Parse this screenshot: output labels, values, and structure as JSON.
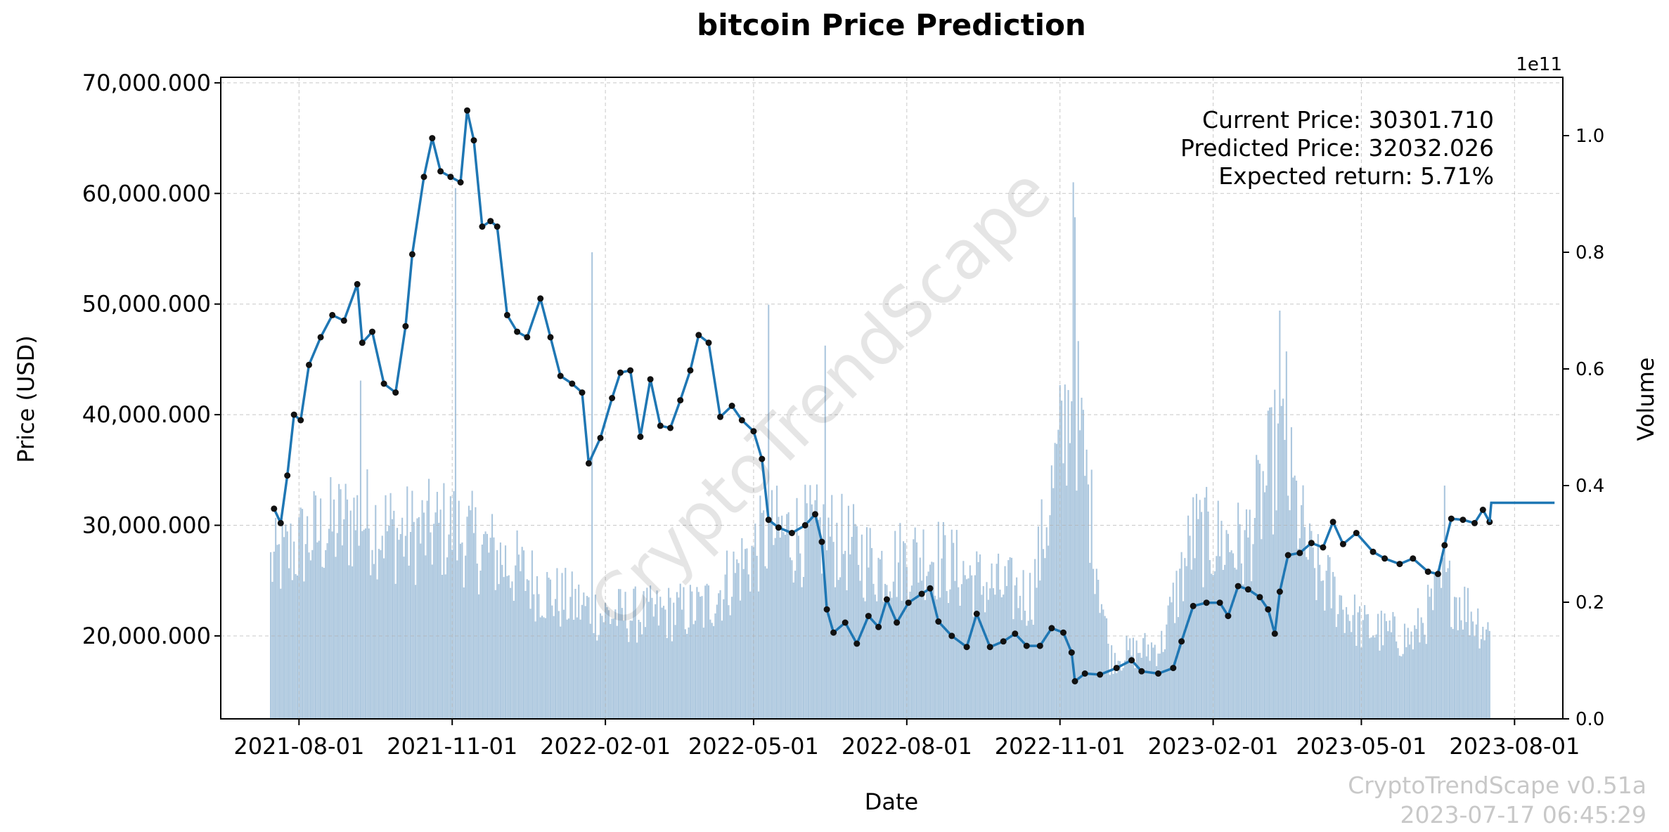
{
  "chart_data": {
    "type": "line",
    "title": "bitcoin Price Prediction",
    "xlabel": "Date",
    "ylabel": "Price (USD)",
    "y2label": "Volume",
    "y2_exponent_label": "1e11",
    "x_ticks": [
      "2021-08-01",
      "2021-11-01",
      "2022-02-01",
      "2022-05-01",
      "2022-08-01",
      "2022-11-01",
      "2023-02-01",
      "2023-05-01",
      "2023-08-01"
    ],
    "x_range": [
      "2021-06-15",
      "2023-08-30"
    ],
    "y_ticks": [
      20000,
      30000,
      40000,
      50000,
      60000,
      70000
    ],
    "y_tick_labels": [
      "20,000.000",
      "30,000.000",
      "40,000.000",
      "50,000.000",
      "60,000.000",
      "70,000.000"
    ],
    "ylim": [
      12500,
      70500
    ],
    "y2_ticks": [
      0.0,
      0.2,
      0.4,
      0.6,
      0.8,
      1.0
    ],
    "y2_tick_labels": [
      "0.0",
      "0.2",
      "0.4",
      "0.6",
      "0.8",
      "1.0"
    ],
    "y2lim": [
      0.0,
      1.1
    ],
    "grid": true,
    "series": [
      {
        "name": "Price",
        "kind": "line-with-markers",
        "color": "#1f77b4",
        "marker_color": "#111111",
        "points": [
          [
            "2021-07-17",
            31500
          ],
          [
            "2021-07-21",
            30200
          ],
          [
            "2021-07-25",
            34500
          ],
          [
            "2021-07-29",
            40000
          ],
          [
            "2021-08-02",
            39500
          ],
          [
            "2021-08-07",
            44500
          ],
          [
            "2021-08-14",
            47000
          ],
          [
            "2021-08-21",
            49000
          ],
          [
            "2021-08-28",
            48500
          ],
          [
            "2021-09-05",
            51800
          ],
          [
            "2021-09-08",
            46500
          ],
          [
            "2021-09-14",
            47500
          ],
          [
            "2021-09-21",
            42800
          ],
          [
            "2021-09-28",
            42000
          ],
          [
            "2021-10-04",
            48000
          ],
          [
            "2021-10-08",
            54500
          ],
          [
            "2021-10-15",
            61500
          ],
          [
            "2021-10-20",
            65000
          ],
          [
            "2021-10-25",
            62000
          ],
          [
            "2021-10-31",
            61500
          ],
          [
            "2021-11-06",
            61000
          ],
          [
            "2021-11-10",
            67500
          ],
          [
            "2021-11-14",
            64800
          ],
          [
            "2021-11-19",
            57000
          ],
          [
            "2021-11-24",
            57500
          ],
          [
            "2021-11-28",
            57000
          ],
          [
            "2021-12-04",
            49000
          ],
          [
            "2021-12-10",
            47500
          ],
          [
            "2021-12-16",
            47000
          ],
          [
            "2021-12-24",
            50500
          ],
          [
            "2021-12-30",
            47000
          ],
          [
            "2022-01-05",
            43500
          ],
          [
            "2022-01-12",
            42800
          ],
          [
            "2022-01-18",
            42000
          ],
          [
            "2022-01-22",
            35600
          ],
          [
            "2022-01-29",
            37900
          ],
          [
            "2022-02-05",
            41500
          ],
          [
            "2022-02-10",
            43800
          ],
          [
            "2022-02-16",
            44000
          ],
          [
            "2022-02-22",
            38000
          ],
          [
            "2022-02-28",
            43200
          ],
          [
            "2022-03-06",
            39000
          ],
          [
            "2022-03-12",
            38800
          ],
          [
            "2022-03-18",
            41300
          ],
          [
            "2022-03-24",
            44000
          ],
          [
            "2022-03-29",
            47200
          ],
          [
            "2022-04-04",
            46500
          ],
          [
            "2022-04-11",
            39800
          ],
          [
            "2022-04-18",
            40800
          ],
          [
            "2022-04-24",
            39500
          ],
          [
            "2022-05-01",
            38500
          ],
          [
            "2022-05-06",
            36000
          ],
          [
            "2022-05-10",
            30500
          ],
          [
            "2022-05-16",
            29800
          ],
          [
            "2022-05-24",
            29300
          ],
          [
            "2022-06-01",
            30000
          ],
          [
            "2022-06-07",
            31000
          ],
          [
            "2022-06-11",
            28500
          ],
          [
            "2022-06-14",
            22400
          ],
          [
            "2022-06-18",
            20300
          ],
          [
            "2022-06-25",
            21200
          ],
          [
            "2022-07-02",
            19300
          ],
          [
            "2022-07-09",
            21800
          ],
          [
            "2022-07-15",
            20800
          ],
          [
            "2022-07-20",
            23300
          ],
          [
            "2022-07-26",
            21200
          ],
          [
            "2022-08-02",
            23000
          ],
          [
            "2022-08-10",
            23800
          ],
          [
            "2022-08-15",
            24300
          ],
          [
            "2022-08-20",
            21300
          ],
          [
            "2022-08-28",
            20000
          ],
          [
            "2022-09-06",
            19000
          ],
          [
            "2022-09-12",
            22000
          ],
          [
            "2022-09-20",
            19000
          ],
          [
            "2022-09-28",
            19500
          ],
          [
            "2022-10-05",
            20200
          ],
          [
            "2022-10-12",
            19100
          ],
          [
            "2022-10-20",
            19100
          ],
          [
            "2022-10-27",
            20700
          ],
          [
            "2022-11-03",
            20300
          ],
          [
            "2022-11-08",
            18500
          ],
          [
            "2022-11-10",
            15900
          ],
          [
            "2022-11-16",
            16600
          ],
          [
            "2022-11-25",
            16500
          ],
          [
            "2022-12-05",
            17100
          ],
          [
            "2022-12-14",
            17800
          ],
          [
            "2022-12-20",
            16800
          ],
          [
            "2022-12-30",
            16600
          ],
          [
            "2023-01-08",
            17100
          ],
          [
            "2023-01-13",
            19500
          ],
          [
            "2023-01-20",
            22700
          ],
          [
            "2023-01-28",
            23000
          ],
          [
            "2023-02-05",
            23000
          ],
          [
            "2023-02-10",
            21800
          ],
          [
            "2023-02-16",
            24500
          ],
          [
            "2023-02-22",
            24200
          ],
          [
            "2023-03-01",
            23500
          ],
          [
            "2023-03-06",
            22400
          ],
          [
            "2023-03-10",
            20200
          ],
          [
            "2023-03-13",
            24000
          ],
          [
            "2023-03-18",
            27300
          ],
          [
            "2023-03-25",
            27500
          ],
          [
            "2023-04-01",
            28400
          ],
          [
            "2023-04-08",
            28000
          ],
          [
            "2023-04-14",
            30300
          ],
          [
            "2023-04-20",
            28300
          ],
          [
            "2023-04-28",
            29300
          ],
          [
            "2023-05-08",
            27600
          ],
          [
            "2023-05-15",
            27000
          ],
          [
            "2023-05-24",
            26500
          ],
          [
            "2023-06-01",
            27000
          ],
          [
            "2023-06-10",
            25800
          ],
          [
            "2023-06-16",
            25600
          ],
          [
            "2023-06-20",
            28200
          ],
          [
            "2023-06-24",
            30600
          ],
          [
            "2023-07-01",
            30500
          ],
          [
            "2023-07-08",
            30200
          ],
          [
            "2023-07-13",
            31400
          ],
          [
            "2023-07-17",
            30301.71
          ]
        ]
      },
      {
        "name": "Prediction",
        "kind": "line",
        "color": "#1f77b4",
        "points": [
          [
            "2023-07-17",
            30301.71
          ],
          [
            "2023-07-18",
            32032.026
          ],
          [
            "2023-08-25",
            32032.026
          ]
        ]
      }
    ],
    "volume": {
      "name": "Volume",
      "kind": "bar",
      "color": "#a8c4dc",
      "unit_scale": "1e11",
      "anchors": [
        [
          "2021-07-15",
          0.25
        ],
        [
          "2021-08-10",
          0.3
        ],
        [
          "2021-09-07",
          0.33
        ],
        [
          "2021-10-01",
          0.3
        ],
        [
          "2021-11-01",
          0.31
        ],
        [
          "2021-12-01",
          0.26
        ],
        [
          "2022-01-01",
          0.2
        ],
        [
          "2022-02-01",
          0.17
        ],
        [
          "2022-03-01",
          0.17
        ],
        [
          "2022-04-01",
          0.18
        ],
        [
          "2022-05-10",
          0.3
        ],
        [
          "2022-06-15",
          0.3
        ],
        [
          "2022-07-15",
          0.25
        ],
        [
          "2022-08-15",
          0.27
        ],
        [
          "2022-09-15",
          0.22
        ],
        [
          "2022-10-15",
          0.2
        ],
        [
          "2022-11-09",
          0.55
        ],
        [
          "2022-12-01",
          0.1
        ],
        [
          "2023-01-01",
          0.12
        ],
        [
          "2023-01-20",
          0.3
        ],
        [
          "2023-02-20",
          0.28
        ],
        [
          "2023-03-13",
          0.45
        ],
        [
          "2023-04-01",
          0.25
        ],
        [
          "2023-05-01",
          0.15
        ],
        [
          "2023-06-01",
          0.13
        ],
        [
          "2023-06-20",
          0.22
        ],
        [
          "2023-07-17",
          0.14
        ]
      ],
      "peaks": [
        [
          "2021-11-03",
          0.91
        ],
        [
          "2022-01-24",
          0.8
        ],
        [
          "2022-05-10",
          0.71
        ],
        [
          "2022-06-13",
          0.64
        ],
        [
          "2022-11-09",
          0.92
        ],
        [
          "2022-11-10",
          0.86
        ],
        [
          "2023-03-13",
          0.7
        ],
        [
          "2023-03-17",
          0.63
        ],
        [
          "2021-09-07",
          0.58
        ],
        [
          "2023-06-20",
          0.4
        ]
      ]
    },
    "annotations": {
      "current_price": "Current Price: 30301.710",
      "predicted_price": "Predicted Price: 32032.026",
      "expected_return": "Expected return: 5.71%",
      "position": "top-right"
    },
    "watermark": "CryptoTrendScape",
    "footer": {
      "version": "CryptoTrendScape v0.51a",
      "timestamp": "2023-07-17 06:45:29"
    }
  }
}
